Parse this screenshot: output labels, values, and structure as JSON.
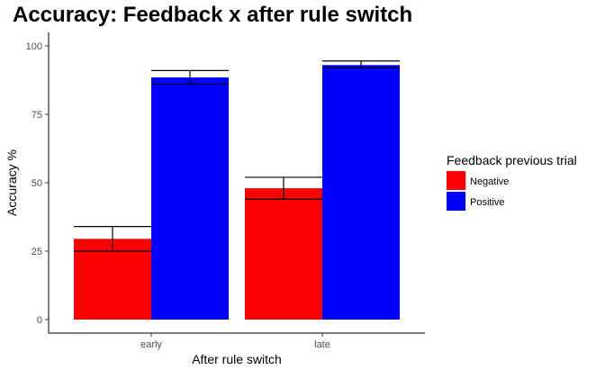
{
  "chart_data": {
    "type": "bar",
    "title": "Accuracy: Feedback x after rule switch",
    "xlabel": "After rule switch",
    "ylabel": "Accuracy %",
    "categories": [
      "early",
      "late"
    ],
    "ylim": [
      0,
      100
    ],
    "yticks": [
      0,
      25,
      50,
      75,
      100
    ],
    "legend": {
      "title": "Feedback previous trial",
      "position": "right"
    },
    "series": [
      {
        "name": "Negative",
        "color": "#ff0000",
        "values": [
          29.5,
          48
        ],
        "error_low": [
          25,
          44
        ],
        "error_high": [
          34,
          52
        ]
      },
      {
        "name": "Positive",
        "color": "#0000ff",
        "values": [
          88.5,
          93
        ],
        "error_low": [
          86,
          92
        ],
        "error_high": [
          91,
          94.5
        ]
      }
    ],
    "grid": false
  }
}
